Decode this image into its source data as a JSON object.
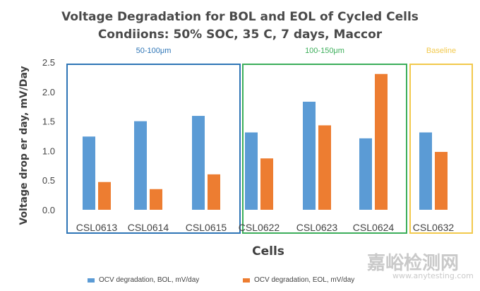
{
  "chart_data": {
    "type": "bar",
    "title": "Voltage Degradation for BOL and EOL of Cycled Cells",
    "subtitle": "Condiions: 50% SOC, 35 C, 7 days, Maccor",
    "xlabel": "Cells",
    "ylabel": "Voltage drop er day, mV/Day",
    "ylim": [
      0,
      2.5
    ],
    "yticks": [
      "0.0",
      "0.5",
      "1.0",
      "1.5",
      "2.0",
      "2.5"
    ],
    "grid": false,
    "legend_position": "bottom",
    "categories": [
      "CSL0613",
      "CSL0614",
      "CSL0615",
      "CSL0622",
      "CSL0623",
      "CSL0624",
      "CSL0632"
    ],
    "series": [
      {
        "name": "OCV degradation, BOL, mV/day",
        "color": "#5b9bd5",
        "values": [
          1.24,
          1.5,
          1.59,
          1.31,
          1.83,
          1.21,
          1.31
        ]
      },
      {
        "name": "OCV degradation, EOL, mV/day",
        "color": "#ed7d31",
        "values": [
          0.47,
          0.35,
          0.6,
          0.87,
          1.43,
          2.3,
          0.98
        ]
      }
    ],
    "groups": [
      {
        "label": "50-100μm",
        "color": "#2e75b6",
        "categories": [
          "CSL0613",
          "CSL0614",
          "CSL0615"
        ]
      },
      {
        "label": "100-150μm",
        "color": "#3cae5a",
        "categories": [
          "CSL0622",
          "CSL0623",
          "CSL0624"
        ]
      },
      {
        "label": "Baseline",
        "color": "#f2c94c",
        "categories": [
          "CSL0632"
        ]
      }
    ]
  },
  "watermark": {
    "text": "嘉峪检测网",
    "url": "www.anytesting.com"
  }
}
